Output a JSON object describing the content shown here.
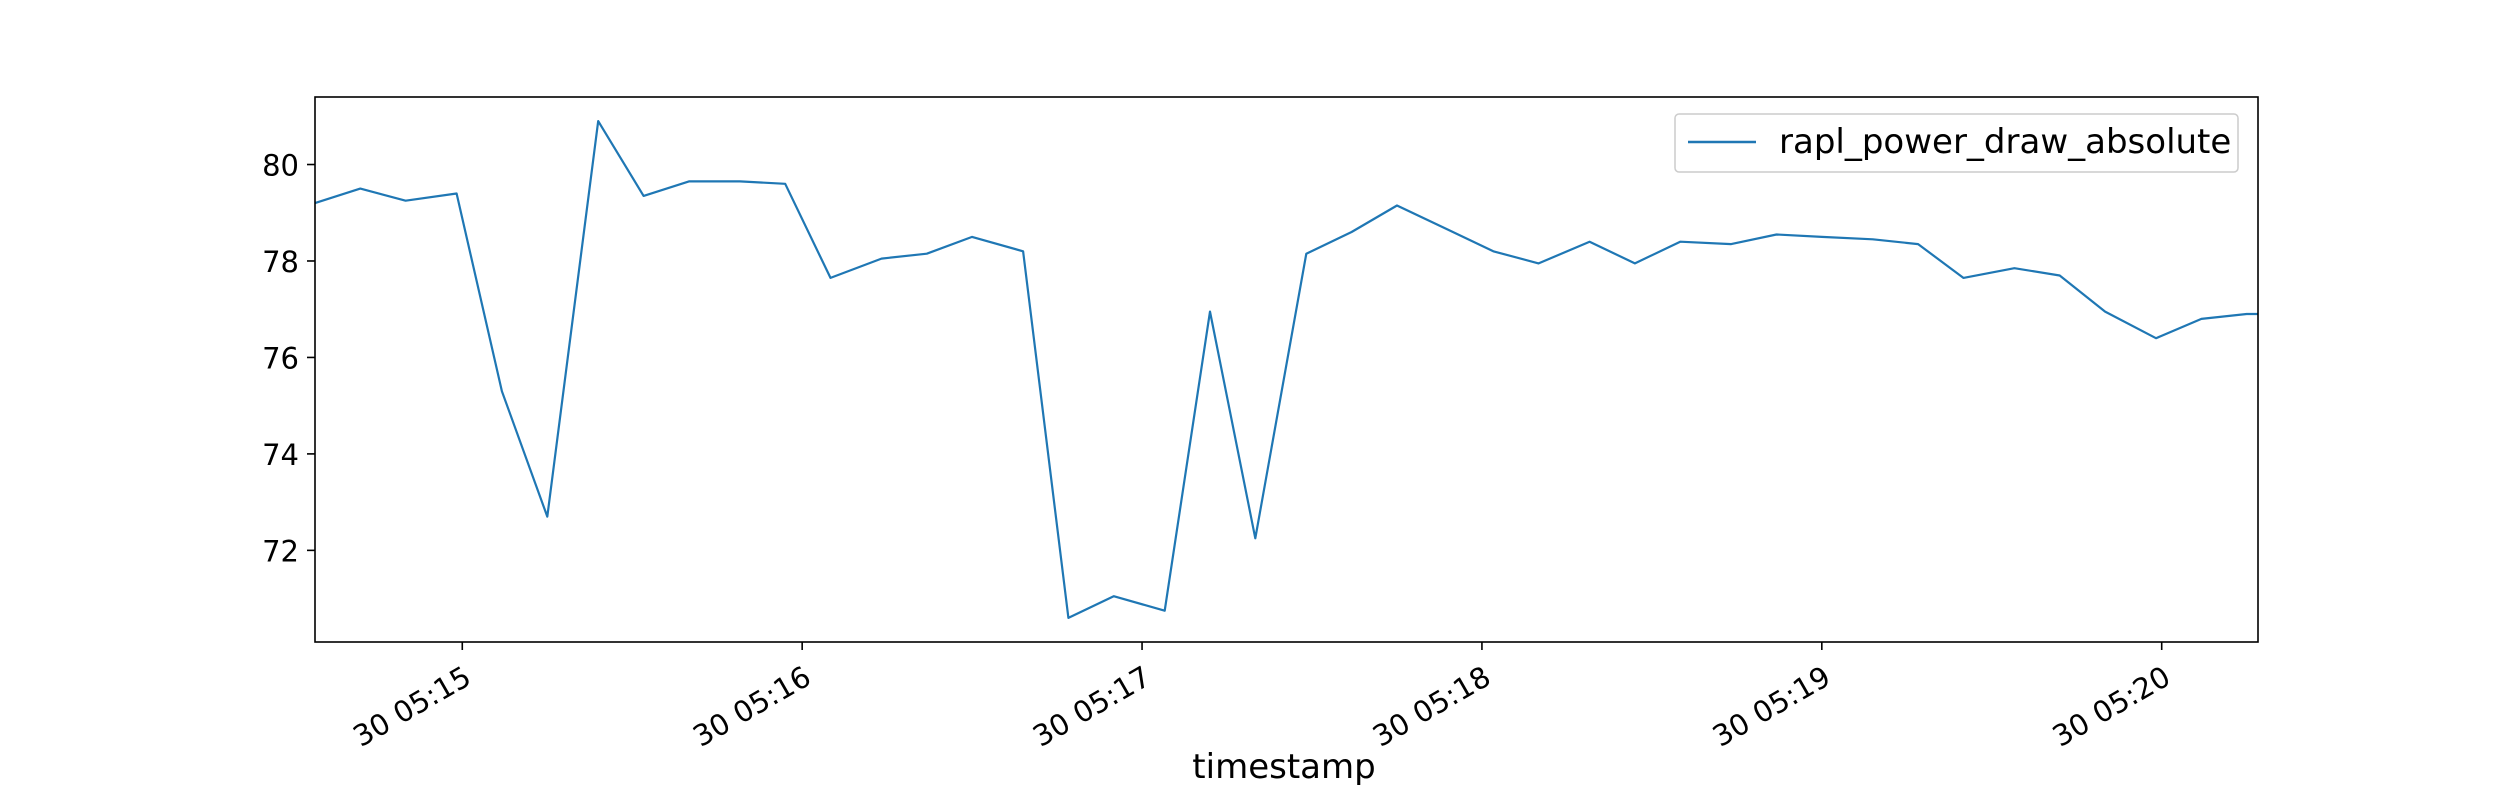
{
  "chart_data": {
    "type": "line",
    "title": "",
    "xlabel": "timestamp",
    "ylabel": "",
    "x_start": "05:14:34",
    "x_end": "05:20:17",
    "xlim": [
      "05:14:34",
      "05:20:17"
    ],
    "ylim": [
      70.1,
      81.4
    ],
    "yticks": [
      72,
      74,
      76,
      78,
      80
    ],
    "xticks": [
      {
        "time": "05:15:00",
        "label": "30 05:15"
      },
      {
        "time": "05:16:00",
        "label": "30 05:16"
      },
      {
        "time": "05:17:00",
        "label": "30 05:17"
      },
      {
        "time": "05:18:00",
        "label": "30 05:18"
      },
      {
        "time": "05:19:00",
        "label": "30 05:19"
      },
      {
        "time": "05:20:00",
        "label": "30 05:20"
      }
    ],
    "legend_position": "top-right",
    "grid": false,
    "series": [
      {
        "name": "rapl_power_draw_absolute",
        "color": "#1f77b4",
        "x": [
          "05:14:34",
          "05:14:42",
          "05:14:50",
          "05:14:59",
          "05:15:07",
          "05:15:15",
          "05:15:24",
          "05:15:32",
          "05:15:40",
          "05:15:49",
          "05:15:57",
          "05:16:05",
          "05:16:14",
          "05:16:22",
          "05:16:30",
          "05:16:39",
          "05:16:47",
          "05:16:55",
          "05:17:04",
          "05:17:12",
          "05:17:20",
          "05:17:29",
          "05:17:37",
          "05:17:45",
          "05:17:54",
          "05:18:02",
          "05:18:10",
          "05:18:19",
          "05:18:27",
          "05:18:35",
          "05:18:44",
          "05:18:52",
          "05:19:00",
          "05:19:09",
          "05:19:17",
          "05:19:25",
          "05:19:34",
          "05:19:42",
          "05:19:50",
          "05:19:59",
          "05:20:07",
          "05:20:15",
          "05:20:17"
        ],
        "y": [
          79.2,
          79.5,
          79.25,
          79.4,
          75.3,
          72.7,
          80.9,
          79.35,
          79.65,
          79.65,
          79.6,
          77.65,
          78.05,
          78.15,
          78.5,
          78.2,
          70.6,
          71.05,
          70.75,
          76.95,
          72.25,
          78.15,
          78.6,
          79.15,
          78.65,
          78.2,
          77.95,
          78.4,
          77.95,
          78.4,
          78.35,
          78.55,
          78.5,
          78.45,
          78.35,
          77.65,
          77.85,
          77.7,
          76.95,
          76.4,
          76.8,
          76.9,
          76.9
        ]
      }
    ]
  }
}
